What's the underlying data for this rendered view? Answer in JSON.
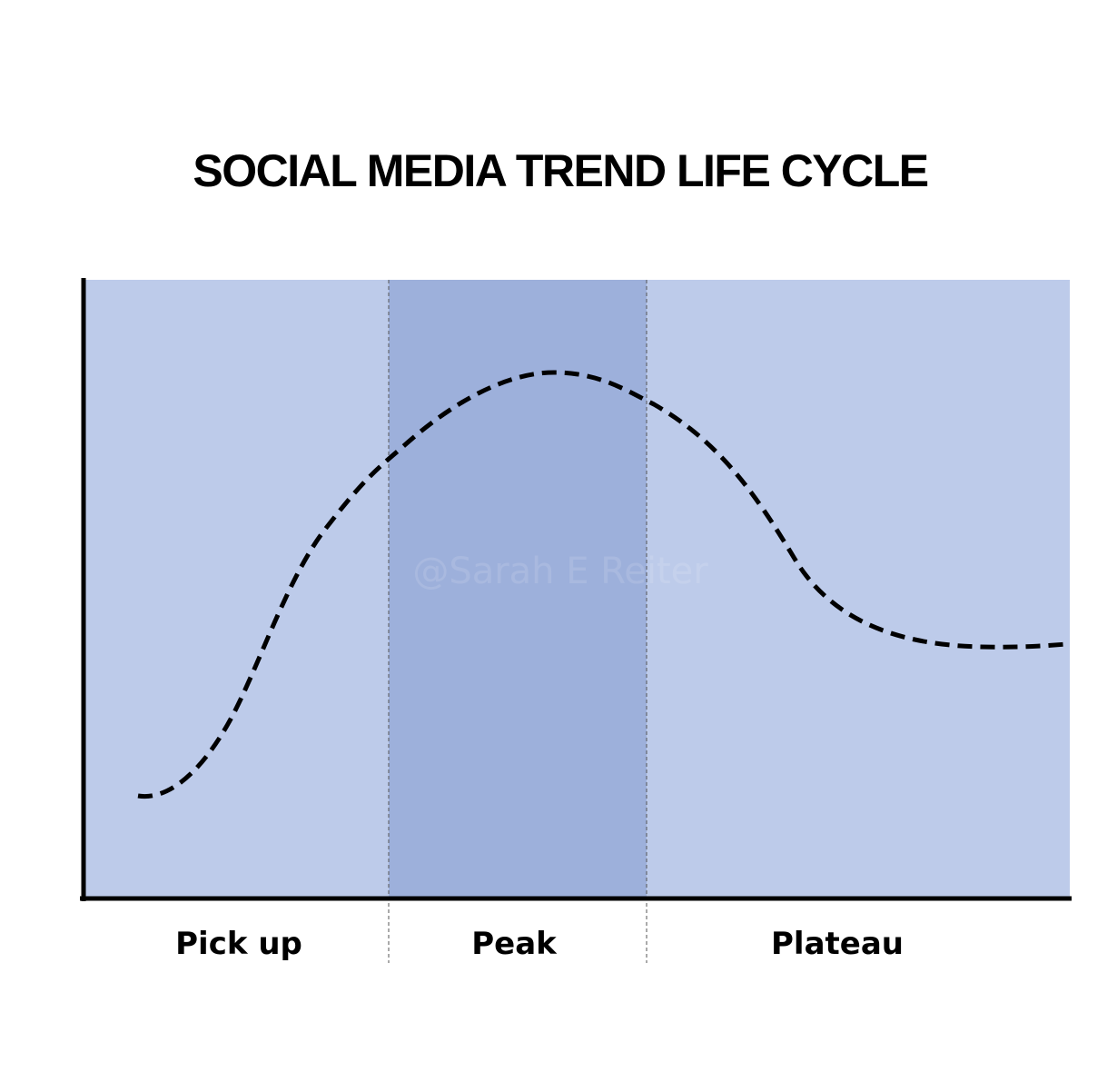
{
  "header": {
    "title": "SOCIAL MEDIA TREND LIFE CYCLE"
  },
  "phases": [
    "Pick up",
    "Peak",
    "Plateau"
  ],
  "watermark": "@Sarah E Reiter"
}
